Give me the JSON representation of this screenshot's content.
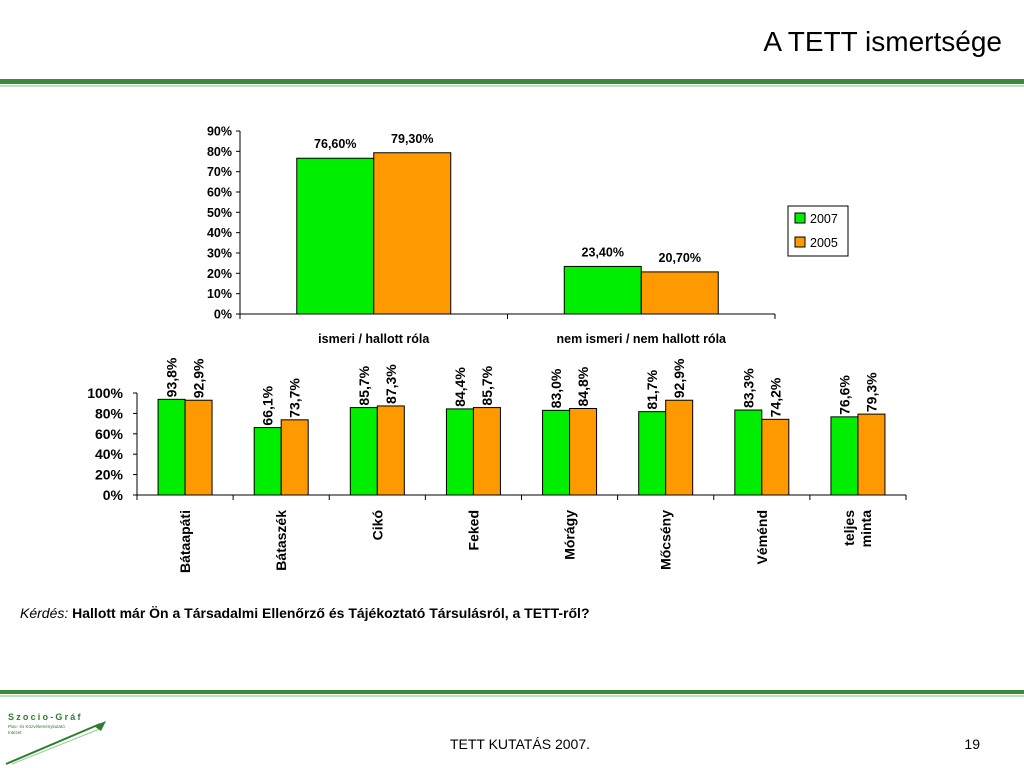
{
  "slide": {
    "title": "A TETT ismertsége",
    "question_label": "Kérdés:",
    "question_text": "Hallott már Ön a Társadalmi Ellenőrző és Tájékoztató Társulásról, a TETT-ről?",
    "footer": "TETT KUTATÁS 2007.",
    "page": "19",
    "logo": {
      "name": "Szocio-Gráf",
      "subtitle_1": "Piac- és Közvéleménykutató",
      "subtitle_2": "Intézet"
    }
  },
  "colors": {
    "series_2007": "#00ee00",
    "series_2005": "#ff9900",
    "accent_green": "#3a8a3a"
  },
  "chart_data": [
    {
      "type": "bar",
      "categories": [
        "ismeri / hallott róla",
        "nem ismeri / nem hallott róla"
      ],
      "series": [
        {
          "name": "2007",
          "values": [
            76.6,
            23.4
          ],
          "labels": [
            "76,60%",
            "23,40%"
          ]
        },
        {
          "name": "2005",
          "values": [
            79.3,
            20.7
          ],
          "labels": [
            "79,30%",
            "20,70%"
          ]
        }
      ],
      "ylim": [
        0,
        90
      ],
      "yticks": [
        "0%",
        "10%",
        "20%",
        "30%",
        "40%",
        "50%",
        "60%",
        "70%",
        "80%",
        "90%"
      ],
      "legend": "right",
      "grid": false
    },
    {
      "type": "bar",
      "categories": [
        "Bátaapáti",
        "Bátaszék",
        "Cikó",
        "Feked",
        "Mórágy",
        "Mőcsény",
        "Véménd",
        "teljes minta"
      ],
      "series": [
        {
          "name": "2007",
          "values": [
            93.8,
            66.1,
            85.7,
            84.4,
            83.0,
            81.7,
            83.3,
            76.6
          ],
          "labels": [
            "93,8%",
            "66,1%",
            "85,7%",
            "84,4%",
            "83,0%",
            "81,7%",
            "83,3%",
            "76,6%"
          ]
        },
        {
          "name": "2005",
          "values": [
            92.9,
            73.7,
            87.3,
            85.7,
            84.8,
            92.9,
            74.2,
            79.3
          ],
          "labels": [
            "92,9%",
            "73,7%",
            "87,3%",
            "85,7%",
            "84,8%",
            "92,9%",
            "74,2%",
            "79,3%"
          ]
        }
      ],
      "ylim": [
        0,
        100
      ],
      "yticks": [
        "0%",
        "20%",
        "40%",
        "60%",
        "80%",
        "100%"
      ],
      "grid": false
    }
  ]
}
